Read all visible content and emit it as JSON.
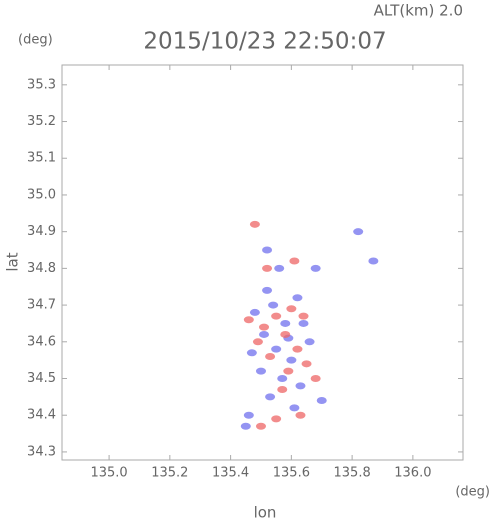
{
  "chart_data": {
    "type": "scatter",
    "title": "2015/10/23 22:50:07",
    "subtitle": "ALT(km) 2.0",
    "x_label": "lon",
    "x_unit": "(deg)",
    "y_label": "lat",
    "y_unit": "(deg)",
    "xlim": [
      134.845,
      136.165
    ],
    "ylim": [
      34.278,
      35.354
    ],
    "xticks": [
      {
        "value": 135,
        "label": "135.0"
      },
      135.2,
      135.4,
      135.6,
      135.8,
      {
        "value": 136,
        "label": "136.0"
      }
    ],
    "yticks": [
      34.3,
      34.4,
      34.5,
      34.6,
      34.7,
      34.8,
      34.9,
      {
        "value": 35,
        "label": "35.0"
      },
      35.1,
      35.2,
      35.3
    ],
    "series": [
      {
        "color": "#7070ee",
        "x": [
          135.51,
          135.55,
          135.48,
          135.6,
          135.57,
          135.63,
          135.53,
          135.46,
          135.45,
          135.62,
          135.68,
          135.82,
          135.56,
          135.52,
          135.66,
          135.7,
          135.58,
          135.5,
          135.87,
          135.54,
          135.61,
          135.47,
          135.59,
          135.64,
          135.52
        ],
        "y": [
          34.62,
          34.58,
          34.68,
          34.55,
          34.5,
          34.48,
          34.45,
          34.4,
          34.37,
          34.72,
          34.8,
          34.9,
          34.8,
          34.85,
          34.6,
          34.44,
          34.65,
          34.52,
          34.82,
          34.7,
          34.42,
          34.57,
          34.61,
          34.65,
          34.74
        ]
      },
      {
        "color": "#ee6666",
        "x": [
          135.58,
          135.62,
          135.55,
          135.49,
          135.53,
          135.59,
          135.65,
          135.63,
          135.55,
          135.5,
          135.48,
          135.61,
          135.52,
          135.64,
          135.57,
          135.46,
          135.68,
          135.6,
          135.51
        ],
        "y": [
          34.62,
          34.58,
          34.67,
          34.6,
          34.56,
          34.52,
          34.54,
          34.4,
          34.39,
          34.37,
          34.92,
          34.82,
          34.8,
          34.67,
          34.47,
          34.66,
          34.5,
          34.69,
          34.64
        ]
      }
    ]
  }
}
